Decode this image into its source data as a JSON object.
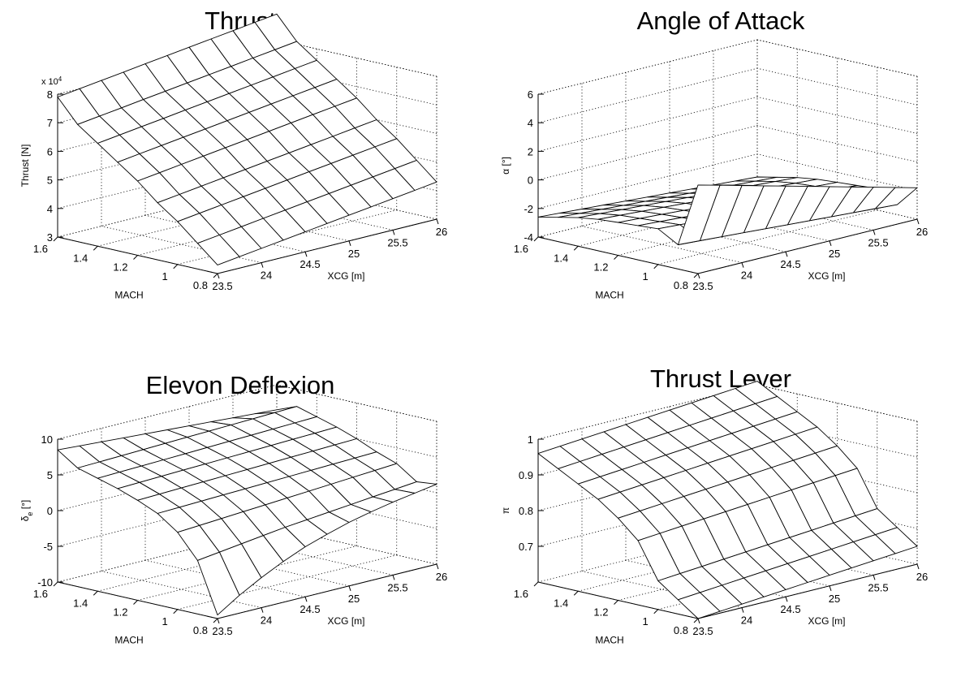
{
  "chart_data": [
    {
      "type": "surface",
      "title": "Thrust",
      "xlabel": "XCG [m]",
      "ylabel": "MACH",
      "zlabel": "Thrust [N]",
      "z_multiplier_label": "x 10",
      "z_multiplier_exp": "4",
      "xlim": [
        23.5,
        26
      ],
      "ylim": [
        0.8,
        1.6
      ],
      "zlim": [
        3,
        8
      ],
      "x_ticks": [
        "23.5",
        "24",
        "24.5",
        "25",
        "25.5",
        "26"
      ],
      "y_ticks": [
        "0.8",
        "1",
        "1.2",
        "1.4",
        "1.6"
      ],
      "z_ticks": [
        "3",
        "4",
        "5",
        "6",
        "7",
        "8"
      ],
      "z_tick_values": [
        3,
        4,
        5,
        6,
        7,
        8
      ],
      "grid": true,
      "surface": {
        "mach": [
          0.8,
          0.9,
          1.0,
          1.1,
          1.2,
          1.3,
          1.4,
          1.5,
          1.6
        ],
        "xcg": [
          23.5,
          23.75,
          24.0,
          24.25,
          24.5,
          24.75,
          25.0,
          25.25,
          25.5,
          25.75,
          26.0
        ],
        "z": [
          [
            3.3,
            3.4,
            3.5,
            3.6,
            3.7,
            3.8,
            3.9,
            4.0,
            4.1,
            4.2,
            4.3
          ],
          [
            3.9,
            4.0,
            4.1,
            4.2,
            4.3,
            4.4,
            4.5,
            4.6,
            4.7,
            4.8,
            4.9
          ],
          [
            4.5,
            4.6,
            4.7,
            4.8,
            4.9,
            5.0,
            5.1,
            5.2,
            5.3,
            5.4,
            5.5
          ],
          [
            5.0,
            5.1,
            5.2,
            5.3,
            5.4,
            5.5,
            5.6,
            5.7,
            5.8,
            5.9,
            6.0
          ],
          [
            5.6,
            5.7,
            5.8,
            5.9,
            6.0,
            6.1,
            6.2,
            6.3,
            6.4,
            6.5,
            6.6
          ],
          [
            6.1,
            6.2,
            6.3,
            6.4,
            6.5,
            6.6,
            6.7,
            6.8,
            6.9,
            7.0,
            7.1
          ],
          [
            6.6,
            6.7,
            6.8,
            6.9,
            7.0,
            7.1,
            7.2,
            7.3,
            7.4,
            7.5,
            7.6
          ],
          [
            7.1,
            7.2,
            7.3,
            7.4,
            7.5,
            7.6,
            7.7,
            7.8,
            7.9,
            8.0,
            8.1
          ],
          [
            7.9,
            8.0,
            8.1,
            8.2,
            8.3,
            8.4,
            8.5,
            8.6,
            8.7,
            8.8,
            8.9
          ]
        ]
      }
    },
    {
      "type": "surface",
      "title": "Angle of Attack",
      "xlabel": "XCG [m]",
      "ylabel": "MACH",
      "zlabel": "α [°]",
      "xlim": [
        23.5,
        26
      ],
      "ylim": [
        0.8,
        1.6
      ],
      "zlim": [
        -4,
        6
      ],
      "x_ticks": [
        "23.5",
        "24",
        "24.5",
        "25",
        "25.5",
        "26"
      ],
      "y_ticks": [
        "0.8",
        "1",
        "1.2",
        "1.4",
        "1.6"
      ],
      "z_ticks": [
        "-4",
        "-2",
        "0",
        "2",
        "4",
        "6"
      ],
      "z_tick_values": [
        -4,
        -2,
        0,
        2,
        4,
        6
      ],
      "grid": true,
      "surface": {
        "mach": [
          0.8,
          0.9,
          1.0,
          1.1,
          1.2,
          1.3,
          1.4,
          1.5,
          1.6
        ],
        "xcg": [
          23.5,
          23.75,
          24.0,
          24.25,
          24.5,
          24.75,
          25.0,
          25.25,
          25.5,
          25.75,
          26.0
        ],
        "z": [
          [
            2.2,
            1.8,
            1.4,
            1.0,
            0.6,
            0.2,
            -0.2,
            -0.6,
            -1.0,
            -1.4,
            -1.8
          ],
          [
            -2.3,
            -2.4,
            -2.5,
            -2.6,
            -2.7,
            -2.8,
            -2.9,
            -3.0,
            -3.1,
            -3.2,
            -3.3
          ],
          [
            -1.5,
            -1.6,
            -1.7,
            -1.8,
            -1.9,
            -2.0,
            -2.1,
            -2.2,
            -2.3,
            -2.4,
            -2.5
          ],
          [
            -1.6,
            -1.7,
            -1.8,
            -1.9,
            -2.0,
            -2.1,
            -2.2,
            -2.3,
            -2.4,
            -2.5,
            -2.6
          ],
          [
            -1.7,
            -1.8,
            -1.9,
            -2.0,
            -2.1,
            -2.2,
            -2.3,
            -2.4,
            -2.5,
            -2.6,
            -2.7
          ],
          [
            -1.8,
            -1.9,
            -2.0,
            -2.1,
            -2.2,
            -2.3,
            -2.4,
            -2.5,
            -2.6,
            -2.7,
            -2.8
          ],
          [
            -2.0,
            -2.1,
            -2.2,
            -2.3,
            -2.4,
            -2.5,
            -2.6,
            -2.7,
            -2.8,
            -2.9,
            -3.0
          ],
          [
            -2.3,
            -2.4,
            -2.5,
            -2.6,
            -2.7,
            -2.8,
            -2.9,
            -3.0,
            -3.1,
            -3.2,
            -3.3
          ],
          [
            -2.6,
            -2.7,
            -2.8,
            -2.9,
            -3.0,
            -3.1,
            -3.2,
            -3.3,
            -3.4,
            -3.5,
            -3.6
          ]
        ]
      }
    },
    {
      "type": "surface",
      "title": "Elevon Deflexion",
      "xlabel": "XCG [m]",
      "ylabel": "MACH",
      "zlabel": "δe [°]",
      "zlabel_symbol": "δ",
      "zlabel_sub": "e",
      "zlabel_unit": " [°]",
      "xlim": [
        23.5,
        26
      ],
      "ylim": [
        0.8,
        1.6
      ],
      "zlim": [
        -10,
        10
      ],
      "x_ticks": [
        "23.5",
        "24",
        "24.5",
        "25",
        "25.5",
        "26"
      ],
      "y_ticks": [
        "0.8",
        "1",
        "1.2",
        "1.4",
        "1.6"
      ],
      "z_ticks": [
        "-10",
        "-5",
        "0",
        "5",
        "10"
      ],
      "z_tick_values": [
        -10,
        -5,
        0,
        5,
        10
      ],
      "grid": true,
      "surface": {
        "mach": [
          0.8,
          0.9,
          1.0,
          1.1,
          1.2,
          1.3,
          1.4,
          1.5,
          1.6
        ],
        "xcg": [
          23.5,
          23.75,
          24.0,
          24.25,
          24.5,
          24.75,
          25.0,
          25.25,
          25.5,
          25.75,
          26.0
        ],
        "z": [
          [
            -9.5,
            -7.5,
            -5.8,
            -4.3,
            -3.0,
            -2.0,
            -1.1,
            -0.4,
            0.2,
            0.7,
            1.2
          ],
          [
            -2.5,
            -2.1,
            -1.7,
            -1.3,
            -0.9,
            -0.6,
            -0.3,
            0.0,
            0.3,
            0.6,
            0.9
          ],
          [
            0.8,
            1.0,
            1.2,
            1.4,
            1.6,
            1.8,
            2.0,
            2.2,
            2.4,
            2.6,
            2.8
          ],
          [
            2.8,
            2.9,
            3.0,
            3.1,
            3.2,
            3.3,
            3.4,
            3.5,
            3.6,
            3.7,
            3.8
          ],
          [
            4.0,
            4.1,
            4.2,
            4.3,
            4.4,
            4.5,
            4.6,
            4.7,
            4.8,
            4.9,
            5.0
          ],
          [
            5.0,
            5.1,
            5.2,
            5.3,
            5.4,
            5.5,
            5.6,
            5.7,
            5.8,
            5.9,
            6.0
          ],
          [
            5.8,
            5.9,
            6.0,
            6.1,
            6.2,
            6.3,
            6.4,
            6.5,
            6.6,
            6.7,
            6.8
          ],
          [
            6.6,
            6.7,
            6.8,
            6.9,
            7.0,
            7.1,
            7.2,
            7.3,
            7.4,
            7.5,
            7.6
          ],
          [
            8.5,
            8.3,
            8.1,
            7.9,
            7.7,
            7.5,
            7.3,
            7.1,
            6.9,
            6.7,
            6.5
          ]
        ]
      }
    },
    {
      "type": "surface",
      "title": "Thrust Lever",
      "xlabel": "XCG [m]",
      "ylabel": "MACH",
      "zlabel": "π",
      "xlim": [
        23.5,
        26
      ],
      "ylim": [
        0.8,
        1.6
      ],
      "zlim": [
        0.6,
        1.0
      ],
      "x_ticks": [
        "23.5",
        "24",
        "24.5",
        "25",
        "25.5",
        "26"
      ],
      "y_ticks": [
        "0.8",
        "1",
        "1.2",
        "1.4",
        "1.6"
      ],
      "z_ticks": [
        "0.7",
        "0.8",
        "0.9",
        "1"
      ],
      "z_tick_values": [
        0.7,
        0.8,
        0.9,
        1.0
      ],
      "grid": true,
      "surface": {
        "mach": [
          0.8,
          0.9,
          1.0,
          1.1,
          1.2,
          1.3,
          1.4,
          1.5,
          1.6
        ],
        "xcg": [
          23.5,
          23.75,
          24.0,
          24.25,
          24.5,
          24.75,
          25.0,
          25.25,
          25.5,
          25.75,
          26.0
        ],
        "z": [
          [
            0.6,
            0.605,
            0.61,
            0.615,
            0.62,
            0.625,
            0.63,
            0.635,
            0.64,
            0.645,
            0.65
          ],
          [
            0.64,
            0.645,
            0.65,
            0.655,
            0.66,
            0.665,
            0.67,
            0.675,
            0.68,
            0.685,
            0.69
          ],
          [
            0.68,
            0.685,
            0.69,
            0.695,
            0.7,
            0.705,
            0.71,
            0.715,
            0.72,
            0.725,
            0.73
          ],
          [
            0.78,
            0.785,
            0.79,
            0.795,
            0.8,
            0.805,
            0.81,
            0.815,
            0.82,
            0.825,
            0.83
          ],
          [
            0.83,
            0.835,
            0.84,
            0.845,
            0.85,
            0.855,
            0.86,
            0.865,
            0.87,
            0.875,
            0.88
          ],
          [
            0.87,
            0.875,
            0.88,
            0.885,
            0.89,
            0.895,
            0.9,
            0.905,
            0.91,
            0.915,
            0.92
          ],
          [
            0.9,
            0.905,
            0.91,
            0.915,
            0.92,
            0.925,
            0.93,
            0.935,
            0.94,
            0.945,
            0.95
          ],
          [
            0.93,
            0.935,
            0.94,
            0.945,
            0.95,
            0.955,
            0.96,
            0.965,
            0.97,
            0.975,
            0.98
          ],
          [
            0.96,
            0.965,
            0.97,
            0.975,
            0.98,
            0.985,
            0.99,
            0.995,
            1.0,
            1.005,
            1.01
          ]
        ]
      }
    }
  ]
}
